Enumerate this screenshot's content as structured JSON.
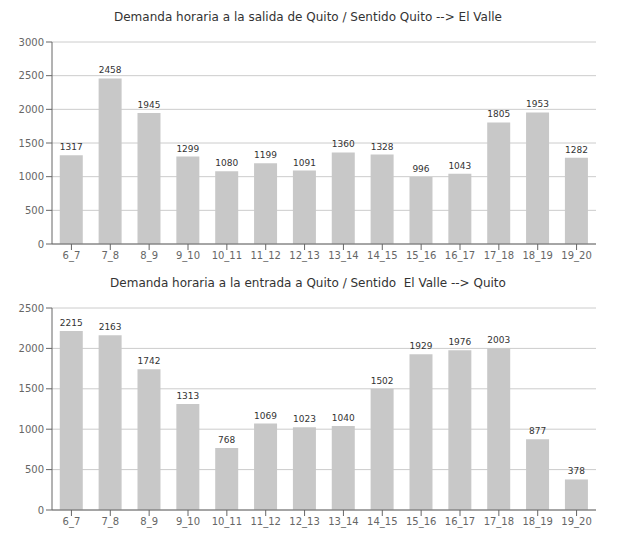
{
  "chart_data": [
    {
      "type": "bar",
      "title": "Demanda horaria a la salida de Quito / Sentido Quito --> El Valle",
      "categories": [
        "6_7",
        "7_8",
        "8_9",
        "9_10",
        "10_11",
        "11_12",
        "12_13",
        "13_14",
        "14_15",
        "15_16",
        "16_17",
        "17_18",
        "18_19",
        "19_20"
      ],
      "values": [
        1317,
        2458,
        1945,
        1299,
        1080,
        1199,
        1091,
        1360,
        1328,
        996,
        1043,
        1805,
        1953,
        1282
      ],
      "color": "#c8c8c8",
      "ylim": [
        0,
        3000
      ],
      "yticks": [
        0,
        500,
        1000,
        1500,
        2000,
        2500,
        3000
      ],
      "grid": true,
      "data_labels": true
    },
    {
      "type": "bar",
      "title": "Demanda horaria a la entrada a Quito / Sentido  El Valle --> Quito",
      "categories": [
        "6_7",
        "7_8",
        "8_9",
        "9_10",
        "10_11",
        "11_12",
        "12_13",
        "13_14",
        "14_15",
        "15_16",
        "16_17",
        "17_18",
        "18_19",
        "19_20"
      ],
      "values": [
        2215,
        2163,
        1742,
        1313,
        768,
        1069,
        1023,
        1040,
        1502,
        1929,
        1976,
        2003,
        877,
        378
      ],
      "color": "#c8c8c8",
      "ylim": [
        0,
        2500
      ],
      "yticks": [
        0,
        500,
        1000,
        1500,
        2000,
        2500
      ],
      "grid": true,
      "data_labels": true
    }
  ]
}
